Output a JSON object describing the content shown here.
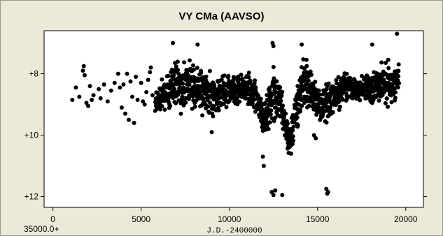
{
  "chart_data": {
    "type": "scatter",
    "title": "VY CMa (AAVSO)",
    "xlabel": "J.D.-2400000",
    "x_offset_label": "35000.0+",
    "ylabel": "",
    "xlim": [
      -500,
      21000
    ],
    "ylim": [
      12.35,
      6.6
    ],
    "y_inverted": true,
    "x_ticks": [
      0,
      5000,
      10000,
      15000,
      20000
    ],
    "x_tick_labels": [
      "0",
      "5000",
      "10000",
      "15000",
      "20000"
    ],
    "y_ticks": [
      8,
      10,
      12
    ],
    "y_tick_labels": [
      "+8",
      "+10",
      "+12"
    ],
    "marker_color": "#000000",
    "grid": false,
    "legend": "none",
    "sparse_points": [
      [
        1100,
        8.85
      ],
      [
        1300,
        8.45
      ],
      [
        1500,
        8.75
      ],
      [
        1700,
        7.9
      ],
      [
        1750,
        7.75
      ],
      [
        1800,
        8.05
      ],
      [
        1900,
        8.95
      ],
      [
        2000,
        9.05
      ],
      [
        2100,
        8.4
      ],
      [
        2200,
        8.85
      ],
      [
        2300,
        8.7
      ],
      [
        2600,
        8.5
      ],
      [
        2700,
        8.8
      ],
      [
        2900,
        8.35
      ],
      [
        3100,
        8.9
      ],
      [
        3300,
        8.55
      ],
      [
        3500,
        8.3
      ],
      [
        3700,
        8.0
      ],
      [
        3800,
        8.45
      ],
      [
        3900,
        9.1
      ],
      [
        4000,
        8.35
      ],
      [
        4100,
        9.3
      ],
      [
        4200,
        8.0
      ],
      [
        4300,
        9.5
      ],
      [
        4400,
        8.25
      ],
      [
        4500,
        8.75
      ],
      [
        4600,
        9.6
      ],
      [
        4700,
        8.1
      ],
      [
        4800,
        8.85
      ],
      [
        5000,
        8.3
      ],
      [
        5100,
        8.9
      ],
      [
        5200,
        9.0
      ],
      [
        5300,
        8.6
      ],
      [
        5400,
        8.2
      ],
      [
        5500,
        7.95
      ],
      [
        5550,
        7.8
      ],
      [
        5650,
        8.7
      ]
    ],
    "dense_band": {
      "x_start": 5800,
      "x_end": 19600,
      "step": 30,
      "mean_curve": [
        [
          5800,
          8.9
        ],
        [
          6500,
          8.6
        ],
        [
          7000,
          8.3
        ],
        [
          8000,
          8.45
        ],
        [
          9000,
          8.7
        ],
        [
          10000,
          8.55
        ],
        [
          11000,
          8.5
        ],
        [
          11500,
          8.7
        ],
        [
          12000,
          9.4
        ],
        [
          12500,
          8.5
        ],
        [
          13000,
          9.1
        ],
        [
          13400,
          10.3
        ],
        [
          13800,
          9.2
        ],
        [
          14200,
          8.2
        ],
        [
          14700,
          8.6
        ],
        [
          15200,
          9.2
        ],
        [
          15600,
          8.9
        ],
        [
          16500,
          8.45
        ],
        [
          17500,
          8.5
        ],
        [
          18500,
          8.4
        ],
        [
          19600,
          8.3
        ]
      ],
      "scatter": [
        [
          5800,
          0.6
        ],
        [
          6500,
          0.8
        ],
        [
          7000,
          1.1
        ],
        [
          8000,
          0.9
        ],
        [
          9000,
          0.9
        ],
        [
          10000,
          0.7
        ],
        [
          11000,
          0.7
        ],
        [
          11800,
          0.8
        ],
        [
          12500,
          1.2
        ],
        [
          13000,
          0.9
        ],
        [
          13400,
          0.6
        ],
        [
          13800,
          1.0
        ],
        [
          14200,
          1.2
        ],
        [
          14700,
          0.9
        ],
        [
          15200,
          0.8
        ],
        [
          16500,
          0.7
        ],
        [
          17500,
          0.6
        ],
        [
          18500,
          0.9
        ],
        [
          19600,
          0.9
        ]
      ]
    },
    "outlier_points": [
      [
        6800,
        7.0
      ],
      [
        8200,
        7.05
      ],
      [
        12450,
        7.0
      ],
      [
        12500,
        7.1
      ],
      [
        14100,
        7.05
      ],
      [
        18100,
        7.05
      ],
      [
        19500,
        6.7
      ],
      [
        11900,
        10.7
      ],
      [
        11950,
        11.0
      ],
      [
        12400,
        11.85
      ],
      [
        12500,
        11.95
      ],
      [
        12600,
        11.8
      ],
      [
        13000,
        11.95
      ],
      [
        15500,
        11.75
      ],
      [
        15550,
        11.9
      ],
      [
        15600,
        11.85
      ],
      [
        9000,
        9.9
      ],
      [
        14800,
        10.0
      ],
      [
        14900,
        10.1
      ],
      [
        13500,
        10.6
      ]
    ]
  }
}
